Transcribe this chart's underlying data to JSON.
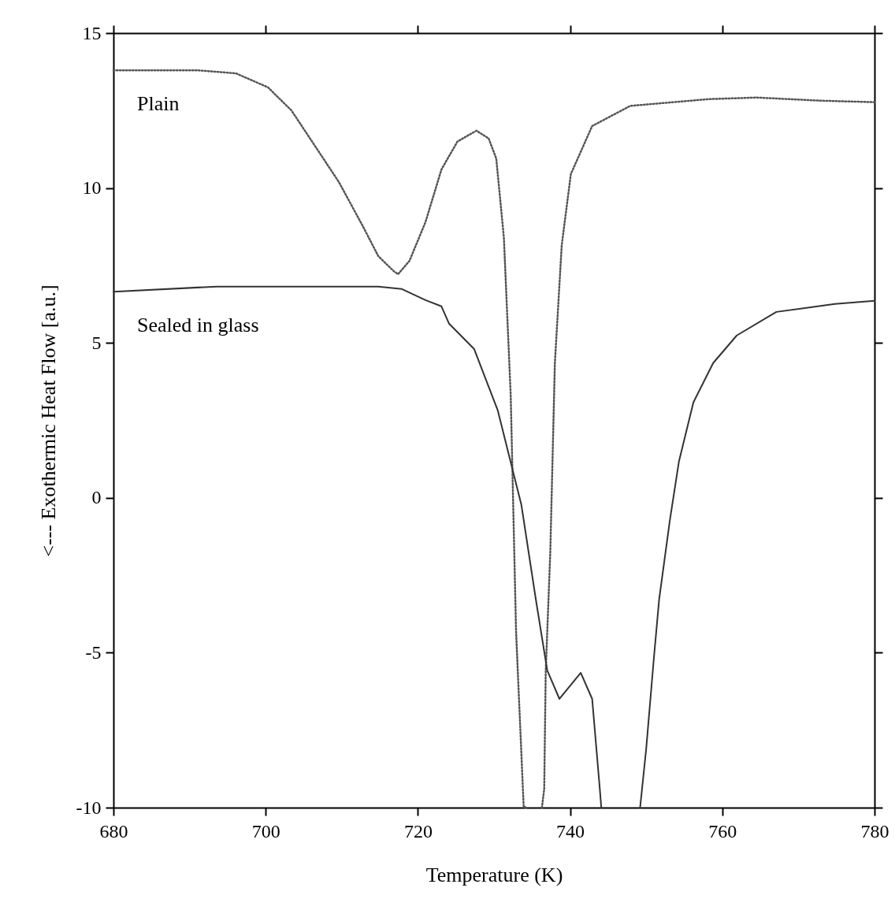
{
  "chart_data": {
    "type": "line",
    "xlabel": "Temperature (K)",
    "ylabel": "<--- Exothermic Heat Flow [a.u.]",
    "xlim": [
      680,
      780
    ],
    "ylim": [
      -10,
      15
    ],
    "xticks": [
      680,
      700,
      720,
      740,
      760,
      780
    ],
    "yticks": [
      -10,
      -5,
      0,
      5,
      10,
      15
    ],
    "grid": false,
    "marker": "none",
    "series": [
      {
        "name": "Plain",
        "color": "#555555",
        "line_style": "dotted",
        "x": [
          680,
          691,
          696.1,
          700.3,
          703.4,
          706.5,
          709.6,
          712.7,
          714.8,
          716.9,
          717.4,
          718.9,
          721,
          723.1,
          725.2,
          727.7,
          729.3,
          730.3,
          731.3,
          732.2,
          732.9,
          733.9,
          734.2,
          null,
          736.3,
          736.6,
          736.8,
          737.4,
          738,
          738.9,
          740.1,
          742.9,
          747.9,
          758.3,
          764.5,
          772.8,
          780
        ],
        "values": [
          13.8,
          13.8,
          13.7,
          13.25,
          12.5,
          11.35,
          10.2,
          8.8,
          7.8,
          7.3,
          7.22,
          7.65,
          8.9,
          10.6,
          11.5,
          11.85,
          11.6,
          10.95,
          8.4,
          3.3,
          -4.3,
          -9.95,
          -10,
          null,
          -10,
          -9.4,
          -5.6,
          -1.75,
          4.35,
          8.15,
          10.45,
          12.0,
          12.65,
          12.87,
          12.92,
          12.82,
          12.77
        ]
      },
      {
        "name": "Sealed in glass",
        "color": "#333333",
        "line_style": "solid",
        "x": [
          680,
          693.6,
          714.8,
          717.9,
          721,
          723.1,
          724.1,
          727.4,
          730.5,
          733.6,
          735.5,
          737,
          738.6,
          741.4,
          742.9,
          743.9,
          744.1,
          null,
          749.2,
          750,
          751,
          751.7,
          753.1,
          754.3,
          756.2,
          758.8,
          761.9,
          767.1,
          774.8,
          780
        ],
        "values": [
          6.65,
          6.82,
          6.82,
          6.74,
          6.38,
          6.18,
          5.62,
          4.8,
          2.82,
          -0.23,
          -3.28,
          -5.57,
          -6.49,
          -5.65,
          -6.49,
          -9.38,
          -10,
          null,
          -10,
          -8.1,
          -5.2,
          -3.28,
          -0.74,
          1.17,
          3.08,
          4.35,
          5.24,
          6.0,
          6.26,
          6.36
        ]
      }
    ]
  }
}
